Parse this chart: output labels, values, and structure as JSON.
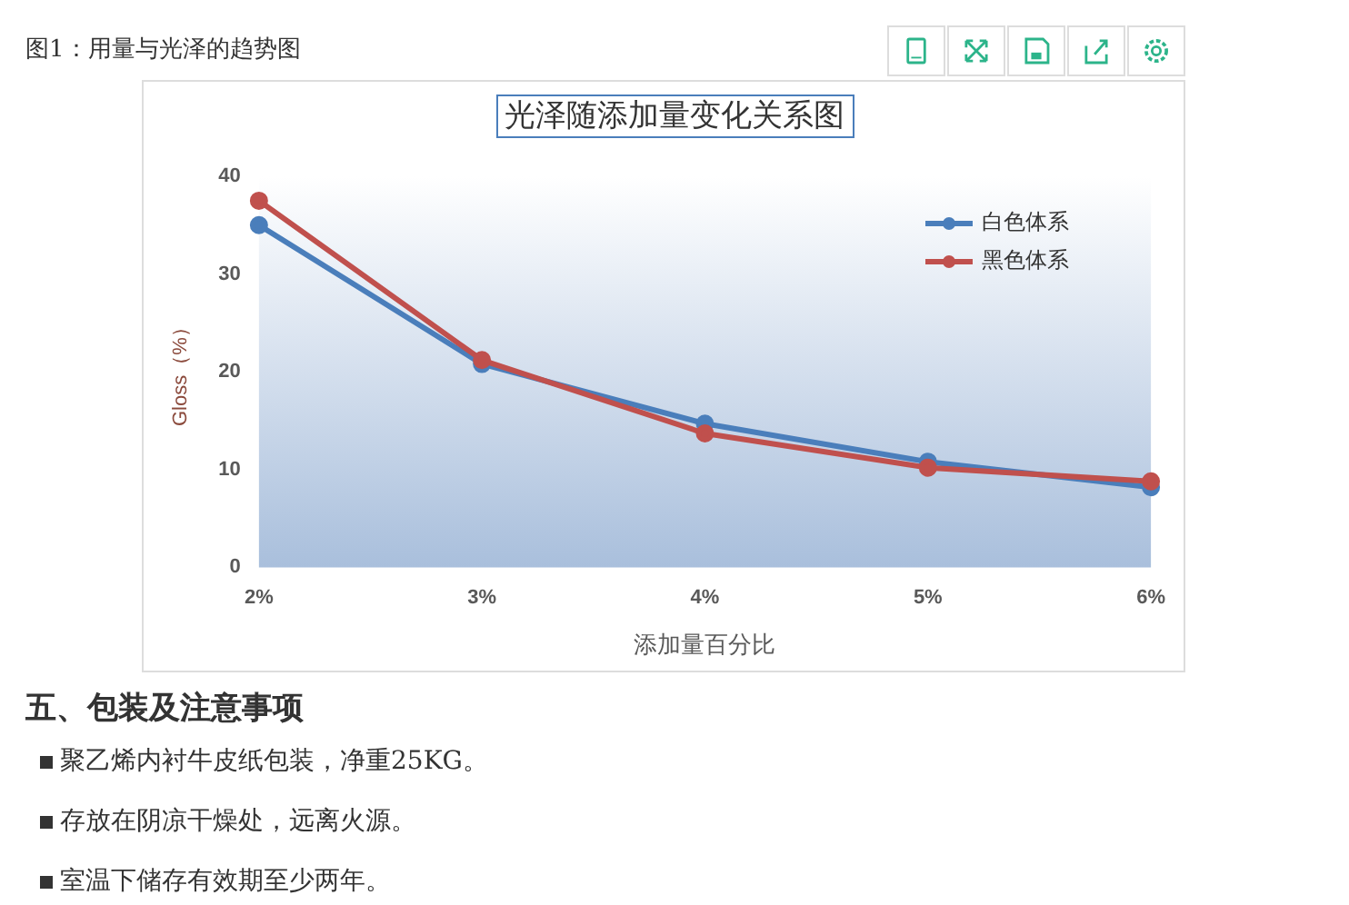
{
  "chart_data": {
    "type": "line",
    "title": "光泽随添加量变化关系图",
    "xlabel": "添加量百分比",
    "ylabel": "Gloss（%）",
    "categories": [
      "2%",
      "3%",
      "4%",
      "5%",
      "6%"
    ],
    "series": [
      {
        "name": "白色体系",
        "color": "#4a7ebb",
        "values": [
          35,
          20.8,
          14.7,
          10.8,
          8.2
        ]
      },
      {
        "name": "黑色体系",
        "color": "#c0504d",
        "values": [
          37.5,
          21.2,
          13.7,
          10.2,
          8.8
        ]
      }
    ],
    "ylim": [
      0,
      40
    ],
    "yticks": [
      0,
      10,
      20,
      30,
      40
    ],
    "grid": false,
    "legend": "top right",
    "marker": "circle",
    "line_style": "solid",
    "annotations": [
      "图1：用量与光泽的趋势图",
      "五、包装及注意事项",
      "聚乙烯内衬牛皮纸包装，净重25KG。",
      "存放在阴凉干燥处，远离火源。",
      "室温下储存有效期至少两年。"
    ]
  }
}
